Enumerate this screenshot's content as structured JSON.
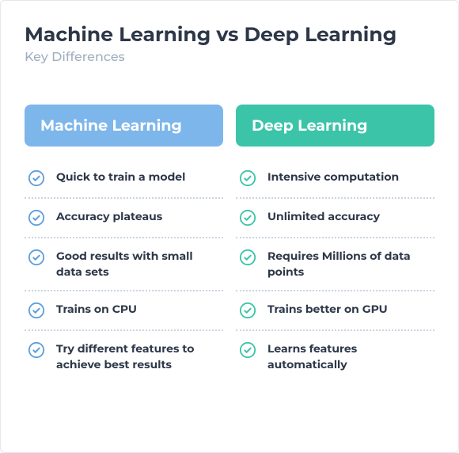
{
  "title": "Machine Learning vs Deep Learning",
  "subtitle": "Key Differences",
  "colors": {
    "title": "#2d3748",
    "subtitle": "#a0aec0",
    "itemText": "#2d3748",
    "dottedBorder": "#cbd5e0",
    "mlHeader": "#7db6ea",
    "dlHeader": "#3cc4a9",
    "mlCheck": "#5c9fe0",
    "dlCheck": "#3cc4a9",
    "white": "#ffffff"
  },
  "columns": {
    "ml": {
      "header": "Machine Learning",
      "headerBg": "#7db6ea",
      "checkColor": "#5c9fe0",
      "items": [
        "Quick to train a model",
        "Accuracy plateaus",
        "Good results with small data sets",
        "Trains on CPU",
        "Try different features to achieve best results"
      ]
    },
    "dl": {
      "header": "Deep Learning",
      "headerBg": "#3cc4a9",
      "checkColor": "#3cc4a9",
      "items": [
        "Intensive computation",
        "Unlimited accuracy",
        "Requires Millions of data points",
        "Trains better on GPU",
        "Learns features automatically"
      ]
    }
  }
}
